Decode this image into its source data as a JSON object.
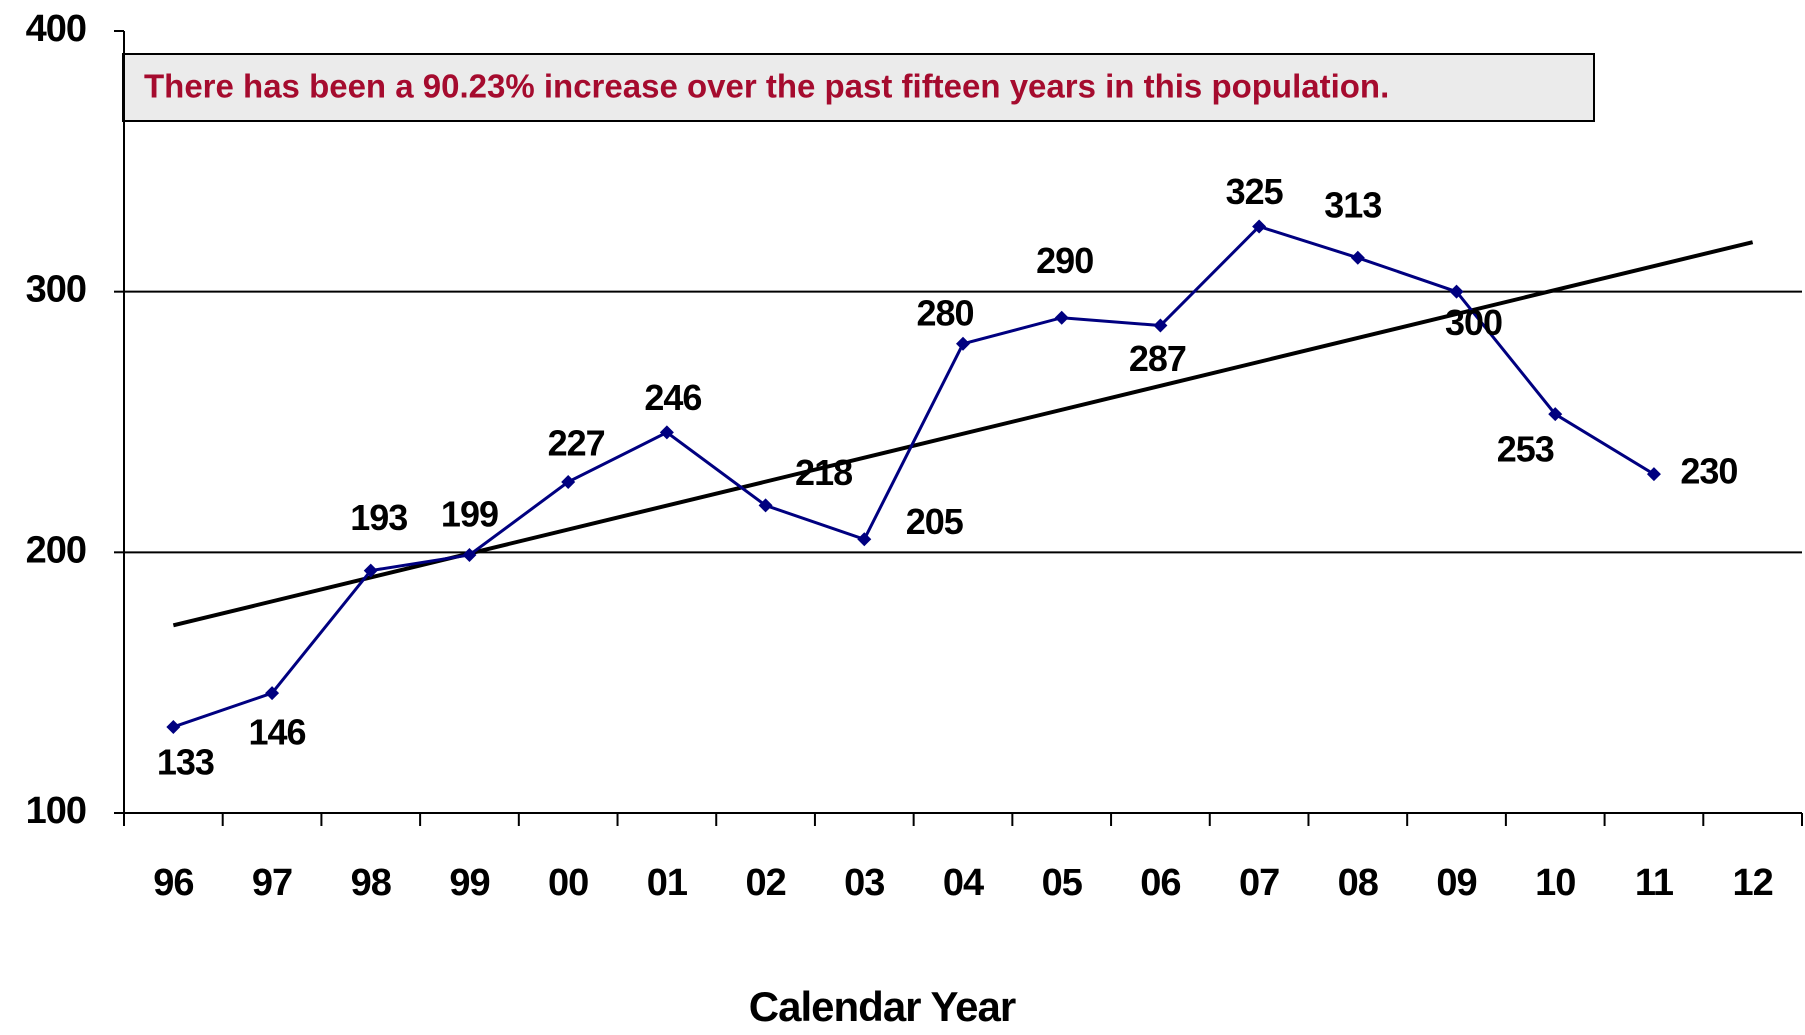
{
  "chart_data": {
    "type": "line",
    "annotation": "There has been a 90.23% increase over the past fifteen years in this population.",
    "xlabel": "Calendar Year",
    "categories": [
      "96",
      "97",
      "98",
      "99",
      "00",
      "01",
      "02",
      "03",
      "04",
      "05",
      "06",
      "07",
      "08",
      "09",
      "10",
      "11",
      "12"
    ],
    "series": [
      {
        "color": "#000080",
        "values": [
          133,
          146,
          193,
          199,
          227,
          246,
          218,
          205,
          280,
          290,
          287,
          325,
          313,
          300,
          253,
          230,
          null
        ]
      }
    ],
    "trendline": {
      "color": "#000000",
      "values": [
        172,
        null,
        null,
        null,
        null,
        null,
        null,
        null,
        null,
        null,
        null,
        null,
        null,
        null,
        null,
        null,
        319
      ]
    },
    "ylim": [
      100,
      400
    ],
    "yticks": [
      100,
      200,
      300,
      400
    ],
    "grid": true
  }
}
